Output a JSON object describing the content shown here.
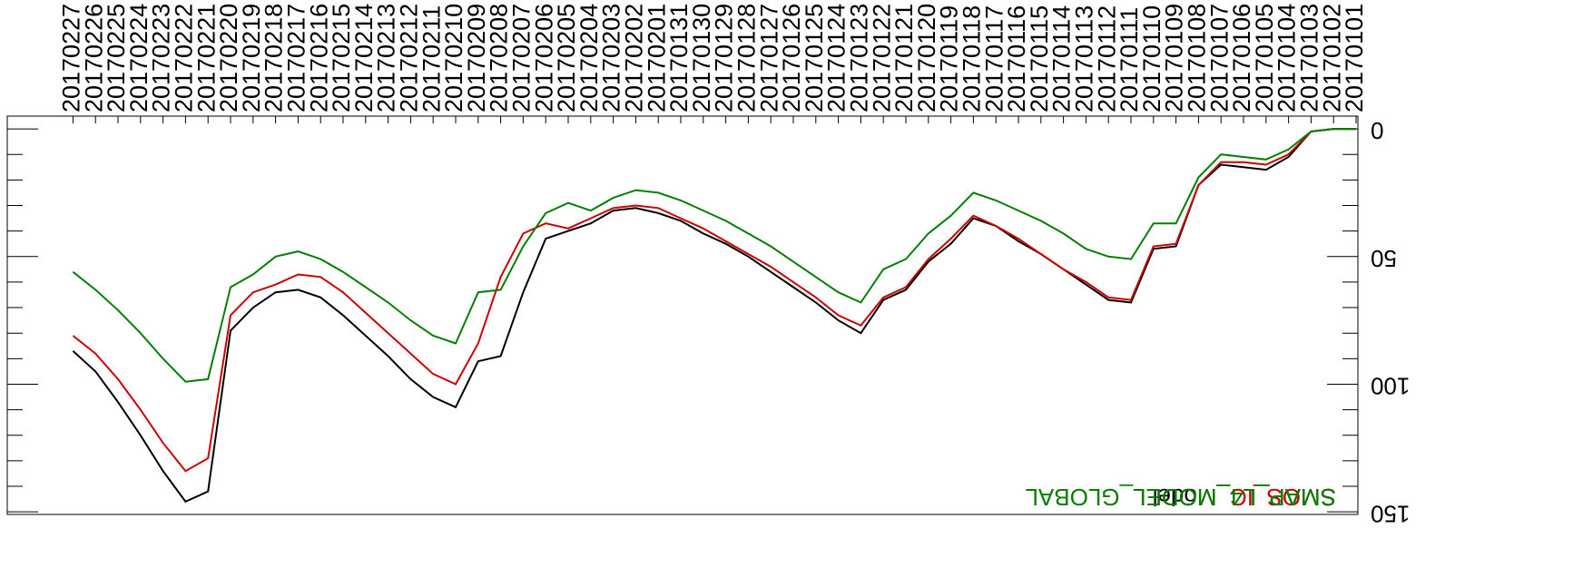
{
  "chart_data": {
    "type": "line",
    "x": [
      "20170101",
      "20170102",
      "20170103",
      "20170104",
      "20170105",
      "20170106",
      "20170107",
      "20170108",
      "20170109",
      "20170110",
      "20170111",
      "20170112",
      "20170113",
      "20170114",
      "20170115",
      "20170116",
      "20170117",
      "20170118",
      "20170119",
      "20170120",
      "20170121",
      "20170122",
      "20170123",
      "20170124",
      "20170125",
      "20170126",
      "20170127",
      "20170128",
      "20170129",
      "20170130",
      "20170131",
      "20170201",
      "20170202",
      "20170203",
      "20170204",
      "20170205",
      "20170206",
      "20170207",
      "20170208",
      "20170209",
      "20170210",
      "20170211",
      "20170212",
      "20170213",
      "20170214",
      "20170215",
      "20170216",
      "20170217",
      "20170218",
      "20170219",
      "20170220",
      "20170221",
      "20170222",
      "20170223",
      "20170224",
      "20170225",
      "20170226",
      "20170227"
    ],
    "series": [
      {
        "name": "SMAP_L4_Model",
        "color": "#000000",
        "values": [
          0,
          0,
          1,
          11,
          16,
          15,
          14,
          22,
          46,
          47,
          68,
          67,
          61,
          55,
          49,
          44,
          38,
          35,
          45,
          52,
          63,
          67,
          80,
          75,
          68,
          62,
          56,
          50,
          45,
          41,
          36,
          33,
          31,
          32,
          37,
          40,
          43,
          64,
          89,
          91,
          109,
          105,
          98,
          89,
          81,
          73,
          66,
          63,
          64,
          70,
          79,
          142,
          146,
          134,
          120,
          107,
          95,
          87
        ]
      },
      {
        "name": "SMOS_IC_MODEL",
        "color": "#cc0000",
        "values": [
          0,
          0,
          1,
          10,
          14,
          13,
          13,
          22,
          45,
          46,
          67,
          66,
          60,
          55,
          49,
          43,
          38,
          34,
          43,
          51,
          62,
          66,
          77,
          73,
          66,
          60,
          54,
          49,
          44,
          39,
          35,
          31,
          30,
          31,
          35,
          39,
          37,
          41,
          58,
          84,
          100,
          96,
          88,
          80,
          72,
          64,
          58,
          57,
          61,
          64,
          73,
          129,
          134,
          123,
          110,
          98,
          88,
          81
        ]
      },
      {
        "name": "SMAP_L4_MODEL_GLOBAL",
        "color": "#008000",
        "values": [
          0,
          0,
          1,
          8,
          12,
          11,
          10,
          19,
          37,
          37,
          51,
          50,
          47,
          41,
          36,
          32,
          28,
          25,
          34,
          41,
          51,
          55,
          68,
          64,
          58,
          52,
          46,
          41,
          36,
          32,
          28,
          25,
          24,
          27,
          32,
          29,
          33,
          46,
          63,
          64,
          84,
          81,
          75,
          68,
          62,
          56,
          51,
          48,
          50,
          57,
          62,
          98,
          99,
          90,
          80,
          71,
          63,
          56
        ]
      }
    ],
    "ylim": [
      -5,
      151
    ],
    "yticks": [
      0,
      50,
      100,
      150
    ],
    "yminorticks": [
      10,
      20,
      30,
      40,
      60,
      70,
      80,
      90,
      110,
      120,
      130,
      140
    ],
    "rotated": 180
  }
}
